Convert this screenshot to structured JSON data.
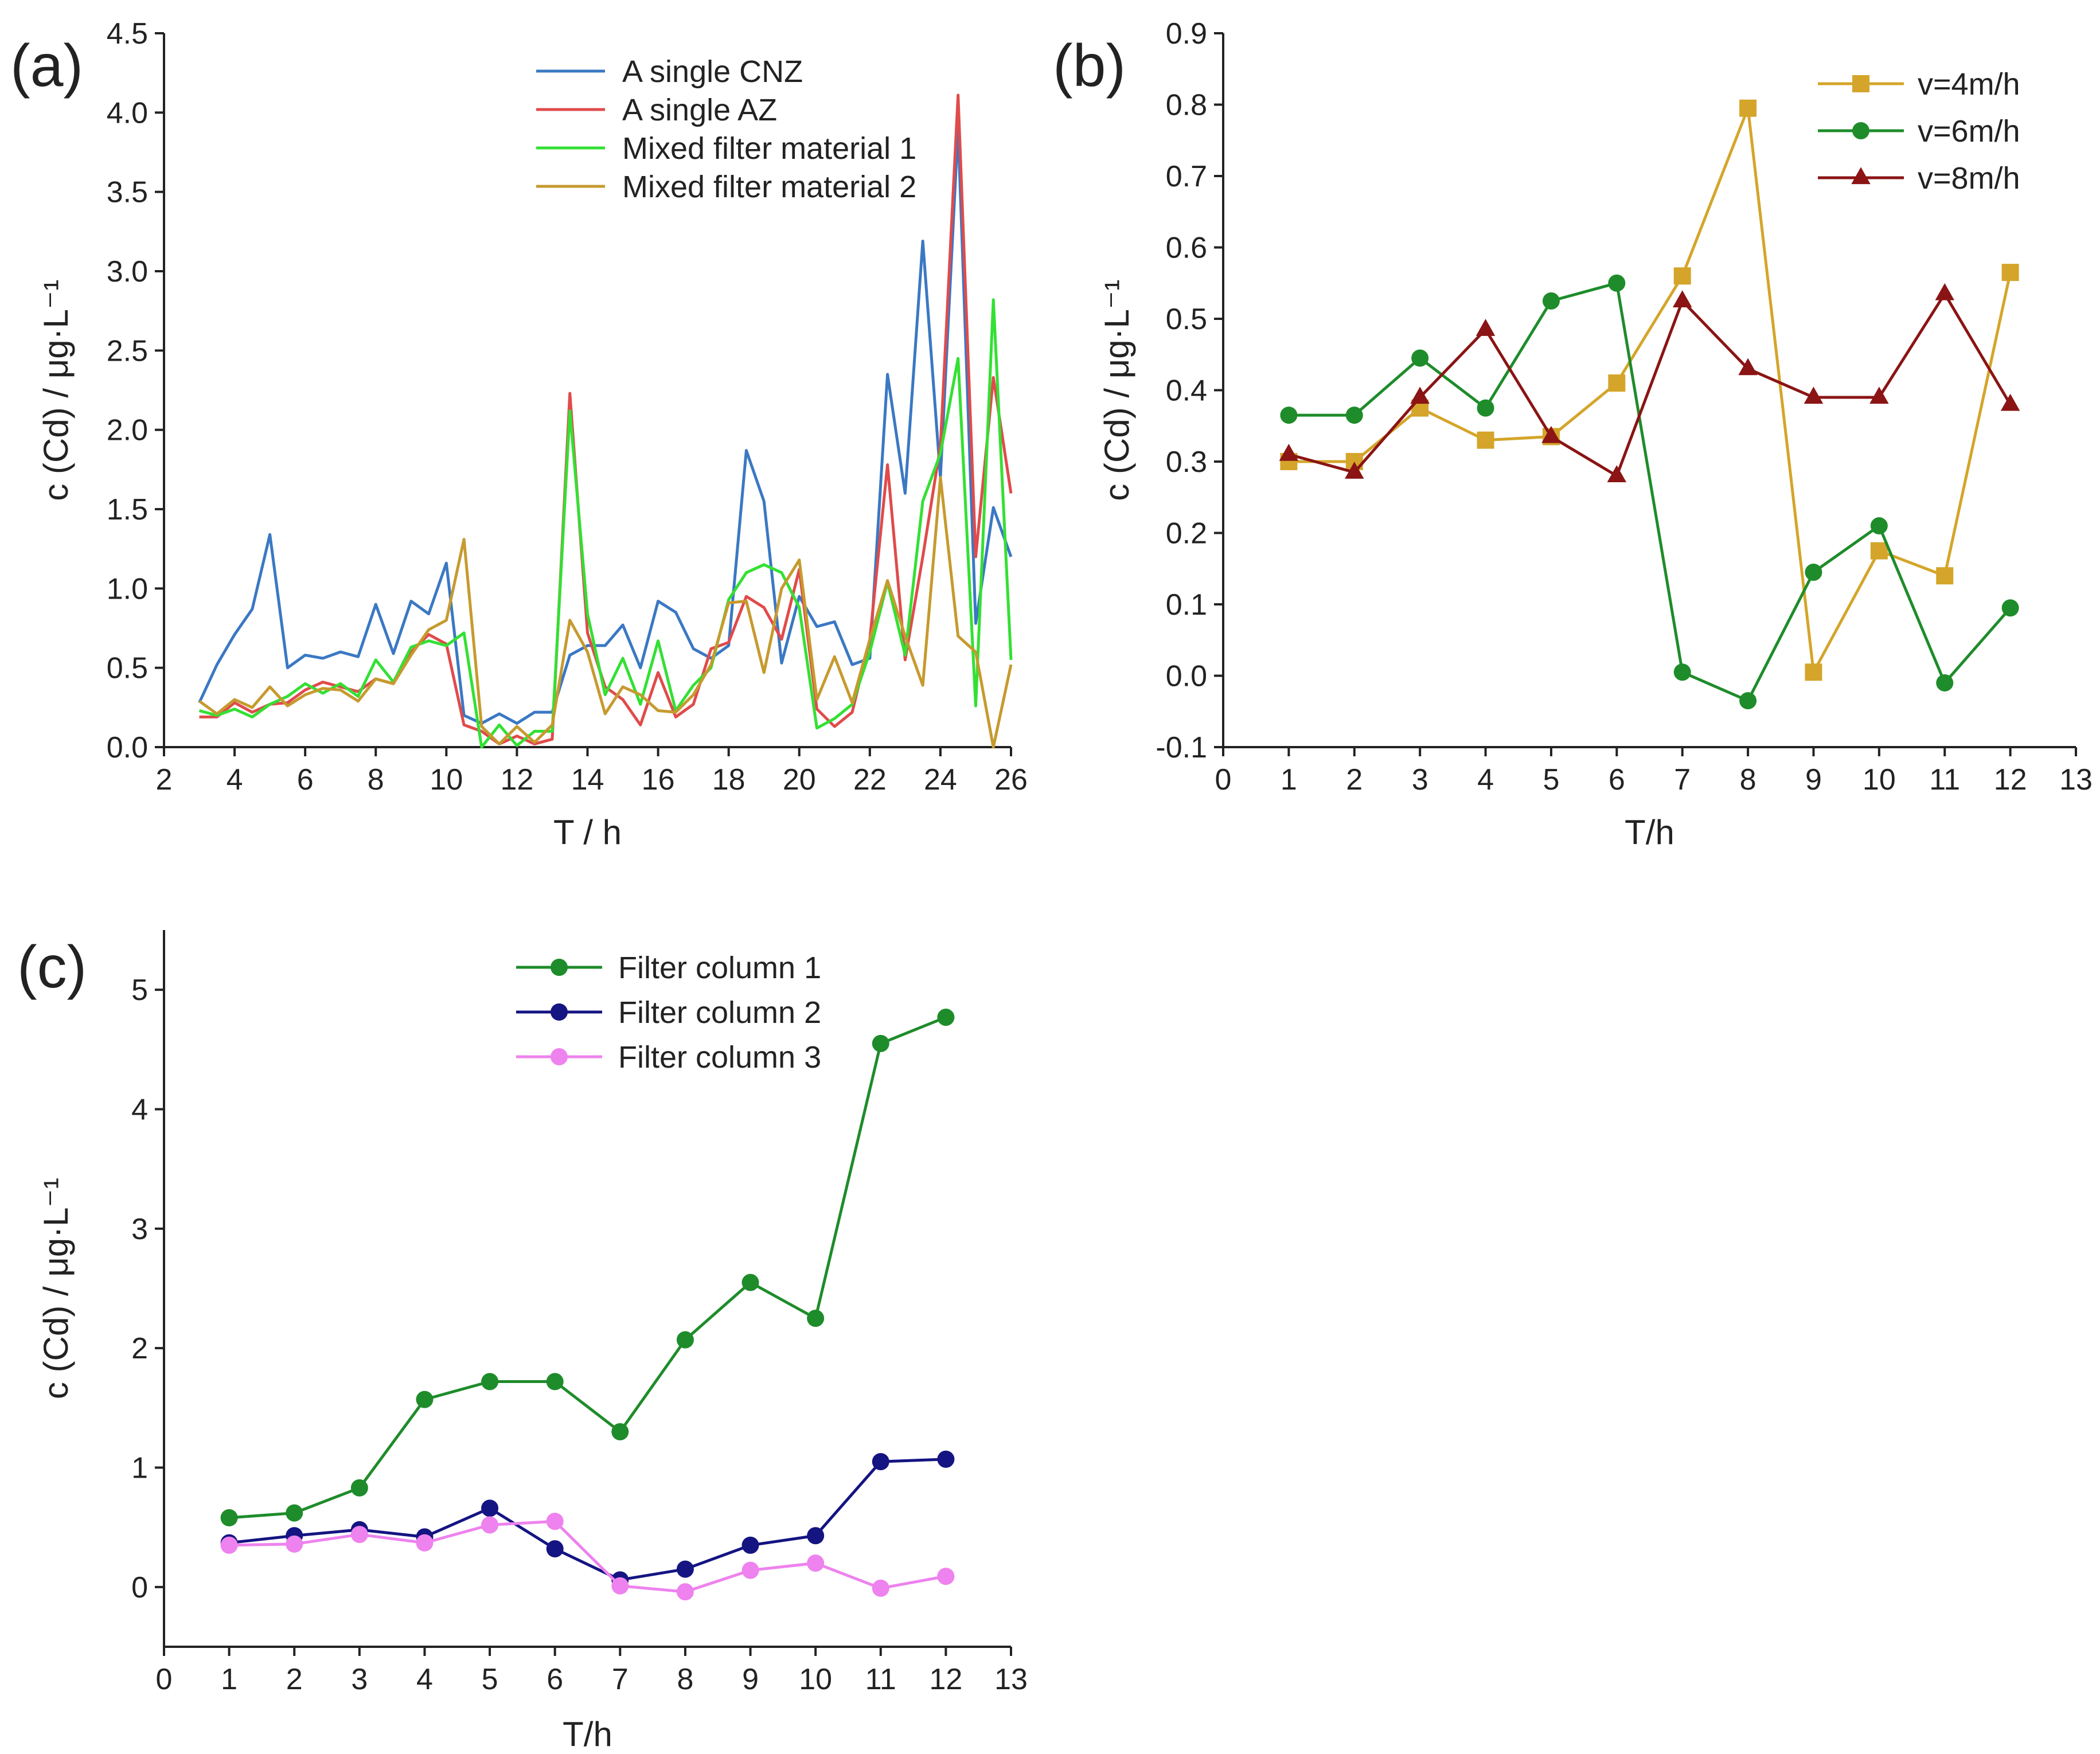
{
  "chart_data": [
    {
      "id": "a",
      "type": "line",
      "panel_label": "(a)",
      "xlabel": "T /  h",
      "ylabel": "c (Cd) / μg·L⁻¹",
      "xlim": [
        2,
        26
      ],
      "ylim": [
        0,
        4.5
      ],
      "xticks": [
        "2",
        "4",
        "6",
        "8",
        "10",
        "12",
        "14",
        "16",
        "18",
        "20",
        "22",
        "24",
        "26"
      ],
      "yticks": [
        "0.0",
        "0.5",
        "1.0",
        "1.5",
        "2.0",
        "2.5",
        "3.0",
        "3.5",
        "4.0",
        "4.5"
      ],
      "x": [
        3,
        3.5,
        4,
        4.5,
        5,
        5.5,
        6,
        6.5,
        7,
        7.5,
        8,
        8.5,
        9,
        9.5,
        10,
        10.5,
        11,
        11.5,
        12,
        12.5,
        13,
        13.5,
        14,
        14.5,
        15,
        15.5,
        16,
        16.5,
        17,
        17.5,
        18,
        18.5,
        19,
        19.5,
        20,
        20.5,
        21,
        21.5,
        22,
        22.5,
        23,
        23.5,
        24,
        24.5,
        25,
        25.5,
        26
      ],
      "series": [
        {
          "name": "A single CNZ",
          "color": "#3a78c3",
          "values": [
            0.28,
            0.52,
            0.71,
            0.87,
            1.34,
            0.5,
            0.58,
            0.56,
            0.6,
            0.57,
            0.9,
            0.59,
            0.92,
            0.84,
            1.16,
            0.2,
            0.15,
            0.21,
            0.15,
            0.22,
            0.22,
            0.58,
            0.64,
            0.64,
            0.77,
            0.5,
            0.92,
            0.85,
            0.62,
            0.56,
            0.64,
            1.87,
            1.55,
            0.53,
            0.95,
            0.76,
            0.79,
            0.52,
            0.56,
            2.35,
            1.6,
            3.19,
            1.7,
            3.9,
            0.78,
            1.51,
            1.2
          ]
        },
        {
          "name": "A single AZ",
          "color": "#e04b4b",
          "values": [
            0.19,
            0.19,
            0.28,
            0.22,
            0.27,
            0.28,
            0.36,
            0.41,
            0.38,
            0.35,
            0.43,
            0.4,
            0.6,
            0.71,
            0.65,
            0.14,
            0.1,
            0.02,
            0.07,
            0.02,
            0.05,
            2.23,
            0.72,
            0.38,
            0.3,
            0.14,
            0.47,
            0.19,
            0.27,
            0.62,
            0.66,
            0.95,
            0.88,
            0.68,
            1.12,
            0.24,
            0.13,
            0.22,
            0.68,
            1.78,
            0.55,
            1.2,
            1.9,
            4.11,
            1.2,
            2.33,
            1.6
          ]
        },
        {
          "name": "Mixed filter material 1",
          "color": "#33e033",
          "values": [
            0.23,
            0.2,
            0.24,
            0.19,
            0.27,
            0.32,
            0.4,
            0.34,
            0.4,
            0.32,
            0.55,
            0.41,
            0.63,
            0.67,
            0.64,
            0.72,
            0.0,
            0.14,
            0.01,
            0.1,
            0.1,
            2.12,
            0.84,
            0.33,
            0.56,
            0.27,
            0.67,
            0.23,
            0.39,
            0.5,
            0.93,
            1.1,
            1.15,
            1.1,
            0.88,
            0.12,
            0.18,
            0.27,
            0.6,
            1.04,
            0.58,
            1.55,
            1.85,
            2.45,
            0.26,
            2.82,
            0.55
          ]
        },
        {
          "name": "Mixed filter material 2",
          "color": "#c69a2e",
          "values": [
            0.29,
            0.21,
            0.3,
            0.25,
            0.38,
            0.26,
            0.33,
            0.37,
            0.36,
            0.29,
            0.43,
            0.4,
            0.58,
            0.74,
            0.8,
            1.31,
            0.13,
            0.02,
            0.13,
            0.03,
            0.14,
            0.8,
            0.6,
            0.21,
            0.38,
            0.33,
            0.23,
            0.22,
            0.33,
            0.52,
            0.91,
            0.92,
            0.47,
            1.0,
            1.18,
            0.3,
            0.57,
            0.28,
            0.68,
            1.05,
            0.7,
            0.39,
            1.7,
            0.7,
            0.6,
            0.0,
            0.52
          ]
        }
      ]
    },
    {
      "id": "b",
      "type": "line",
      "panel_label": "(b)",
      "xlabel": "T/h",
      "ylabel": "c (Cd) / μg·L⁻¹",
      "xlim": [
        0,
        13
      ],
      "ylim": [
        -0.1,
        0.9
      ],
      "xticks": [
        "0",
        "1",
        "2",
        "3",
        "4",
        "5",
        "6",
        "7",
        "8",
        "9",
        "10",
        "11",
        "12",
        "13"
      ],
      "yticks": [
        "-0.1",
        "0.0",
        "0.1",
        "0.2",
        "0.3",
        "0.4",
        "0.5",
        "0.6",
        "0.7",
        "0.8",
        "0.9"
      ],
      "x": [
        1,
        2,
        3,
        4,
        5,
        6,
        7,
        8,
        9,
        10,
        11,
        12
      ],
      "series": [
        {
          "name": "v=4m/h",
          "color": "#d4a52a",
          "marker": "square",
          "values": [
            0.3,
            0.3,
            0.375,
            0.33,
            0.335,
            0.41,
            0.56,
            0.795,
            0.005,
            0.175,
            0.14,
            0.565
          ]
        },
        {
          "name": "v=6m/h",
          "color": "#1e8c2a",
          "marker": "circle",
          "values": [
            0.365,
            0.365,
            0.445,
            0.375,
            0.525,
            0.55,
            0.005,
            -0.035,
            0.145,
            0.21,
            -0.01,
            0.095
          ]
        },
        {
          "name": "v=8m/h",
          "color": "#8b1414",
          "marker": "triangle",
          "values": [
            0.31,
            0.285,
            0.39,
            0.485,
            0.335,
            0.28,
            0.525,
            0.43,
            0.39,
            0.39,
            0.535,
            0.38
          ]
        }
      ]
    },
    {
      "id": "c",
      "type": "line",
      "panel_label": "(c)",
      "xlabel": "T/h",
      "ylabel": "c (Cd) / μg·L⁻¹",
      "xlim": [
        0,
        13
      ],
      "ylim": [
        -0.5,
        5.5
      ],
      "xticks": [
        "0",
        "1",
        "2",
        "3",
        "4",
        "5",
        "6",
        "7",
        "8",
        "9",
        "10",
        "11",
        "12",
        "13"
      ],
      "yticks": [
        "0",
        "1",
        "2",
        "3",
        "4",
        "5"
      ],
      "ytick_values": [
        0,
        1,
        2,
        3,
        4,
        5
      ],
      "x": [
        1,
        2,
        3,
        4,
        5,
        6,
        7,
        8,
        9,
        10,
        11,
        12
      ],
      "series": [
        {
          "name": "Filter column 1",
          "color": "#1e8c2a",
          "marker": "circle",
          "values": [
            0.58,
            0.62,
            0.83,
            1.57,
            1.72,
            1.72,
            1.3,
            2.07,
            2.55,
            2.25,
            4.55,
            4.77
          ]
        },
        {
          "name": "Filter column 2",
          "color": "#141482",
          "marker": "circle",
          "values": [
            0.37,
            0.43,
            0.48,
            0.42,
            0.66,
            0.32,
            0.06,
            0.15,
            0.35,
            0.43,
            1.05,
            1.07
          ]
        },
        {
          "name": "Filter column 3",
          "color": "#ee82ee",
          "marker": "circle",
          "values": [
            0.35,
            0.36,
            0.44,
            0.37,
            0.52,
            0.55,
            0.01,
            -0.04,
            0.14,
            0.2,
            -0.01,
            0.09
          ]
        }
      ]
    }
  ]
}
